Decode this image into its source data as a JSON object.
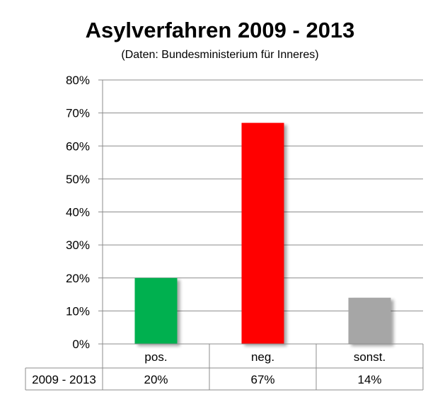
{
  "chart_data": {
    "type": "bar",
    "title": "Asylverfahren 2009 - 2013",
    "subtitle": "(Daten: Bundesministerium für Inneres)",
    "categories": [
      "pos.",
      "neg.",
      "sonst."
    ],
    "series": [
      {
        "name": "2009 - 2013",
        "values": [
          20,
          67,
          14
        ]
      }
    ],
    "value_labels": [
      "20%",
      "67%",
      "14%"
    ],
    "bar_colors": [
      "#00b050",
      "#ff0000",
      "#a6a6a6"
    ],
    "ylim": [
      0,
      80
    ],
    "yticks": [
      0,
      10,
      20,
      30,
      40,
      50,
      60,
      70,
      80
    ],
    "ytick_labels": [
      "0%",
      "10%",
      "20%",
      "30%",
      "40%",
      "50%",
      "60%",
      "70%",
      "80%"
    ],
    "grid": true,
    "legend": "data-table below the chart",
    "xlabel": "",
    "ylabel": ""
  }
}
